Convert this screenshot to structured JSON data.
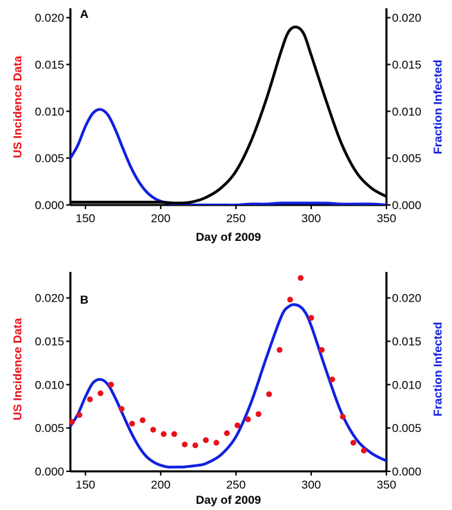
{
  "colors": {
    "incidence": "#e8101a",
    "fraction": "#1020e0",
    "black_curve": "#000000"
  },
  "chart_data": [
    {
      "type": "line",
      "panel": "A",
      "xlabel": "Day of 2009",
      "ylabel_left": "US Incidence Data",
      "ylabel_right": "Fraction Infected",
      "xlim": [
        140,
        350
      ],
      "ylim_left": [
        0,
        0.021
      ],
      "ylim_right": [
        0,
        0.021
      ],
      "x_ticks": [
        "150",
        "200",
        "250",
        "300",
        "350"
      ],
      "x_tick_values": [
        150,
        200,
        250,
        300,
        350
      ],
      "y_ticks": [
        "0.000",
        "0.005",
        "0.010",
        "0.015",
        "0.020"
      ],
      "y_tick_values": [
        0,
        0.005,
        0.01,
        0.015,
        0.02
      ],
      "series": [
        {
          "color": "blue",
          "x": [
            140,
            145,
            150,
            155,
            160,
            165,
            170,
            175,
            180,
            185,
            190,
            195,
            200,
            205,
            210,
            215,
            220,
            230,
            240,
            250,
            260,
            270,
            280,
            290,
            300,
            310,
            320,
            330,
            340,
            350
          ],
          "y": [
            0.005,
            0.0064,
            0.0084,
            0.0098,
            0.0102,
            0.0096,
            0.008,
            0.006,
            0.0041,
            0.0026,
            0.0015,
            0.0008,
            0.0004,
            0.0002,
            0.0001,
            5e-05,
            0.0,
            0.0,
            0.0,
            0.0,
            0.0001,
            0.0001,
            0.0002,
            0.0002,
            0.0002,
            0.0002,
            0.0001,
            0.0001,
            0.0001,
            0.0
          ]
        },
        {
          "color": "black",
          "x": [
            140,
            160,
            180,
            200,
            210,
            220,
            230,
            240,
            250,
            260,
            270,
            280,
            285,
            290,
            295,
            300,
            310,
            320,
            330,
            340,
            350
          ],
          "y": [
            0.0003,
            0.0003,
            0.0003,
            0.0003,
            0.0002,
            0.0003,
            0.0008,
            0.0018,
            0.0036,
            0.0068,
            0.0112,
            0.0164,
            0.0185,
            0.019,
            0.0183,
            0.016,
            0.0111,
            0.0066,
            0.0035,
            0.0018,
            0.0009
          ]
        }
      ]
    },
    {
      "type": "line",
      "panel": "B",
      "xlabel": "Day of 2009",
      "ylabel_left": "US Incidence Data",
      "ylabel_right": "Fraction Infected",
      "xlim": [
        140,
        350
      ],
      "ylim_left": [
        0,
        0.023
      ],
      "ylim_right": [
        0,
        0.023
      ],
      "x_ticks": [
        "150",
        "200",
        "250",
        "300",
        "350"
      ],
      "x_tick_values": [
        150,
        200,
        250,
        300,
        350
      ],
      "y_ticks": [
        "0.000",
        "0.005",
        "0.010",
        "0.015",
        "0.020"
      ],
      "y_tick_values": [
        0,
        0.005,
        0.01,
        0.015,
        0.02
      ],
      "series": [
        {
          "color": "blue",
          "x": [
            140,
            145,
            150,
            155,
            160,
            165,
            170,
            175,
            180,
            185,
            190,
            195,
            200,
            205,
            210,
            215,
            220,
            225,
            230,
            240,
            250,
            260,
            270,
            280,
            285,
            290,
            295,
            300,
            310,
            320,
            330,
            340,
            350
          ],
          "y": [
            0.0052,
            0.0066,
            0.0086,
            0.0102,
            0.0106,
            0.01,
            0.0084,
            0.0065,
            0.0046,
            0.003,
            0.0018,
            0.0011,
            0.0007,
            0.0005,
            0.0005,
            0.0005,
            0.0006,
            0.0007,
            0.0009,
            0.0019,
            0.004,
            0.0079,
            0.013,
            0.0178,
            0.019,
            0.0192,
            0.0186,
            0.0168,
            0.0116,
            0.0068,
            0.0037,
            0.0021,
            0.0012
          ]
        },
        {
          "color": "red",
          "mode": "points",
          "x": [
            141,
            146,
            153,
            160,
            167,
            174,
            181,
            188,
            195,
            202,
            209,
            216,
            223,
            230,
            237,
            244,
            251,
            258,
            265,
            272,
            279,
            286,
            293,
            300,
            307,
            314,
            321,
            328,
            335
          ],
          "y": [
            0.0057,
            0.0065,
            0.0083,
            0.009,
            0.01,
            0.0072,
            0.0055,
            0.0059,
            0.0048,
            0.0043,
            0.0043,
            0.0031,
            0.003,
            0.0036,
            0.0033,
            0.0044,
            0.0053,
            0.006,
            0.0066,
            0.0089,
            0.014,
            0.0198,
            0.0223,
            0.0177,
            0.014,
            0.0106,
            0.0063,
            0.0033,
            0.0024
          ]
        }
      ]
    }
  ]
}
